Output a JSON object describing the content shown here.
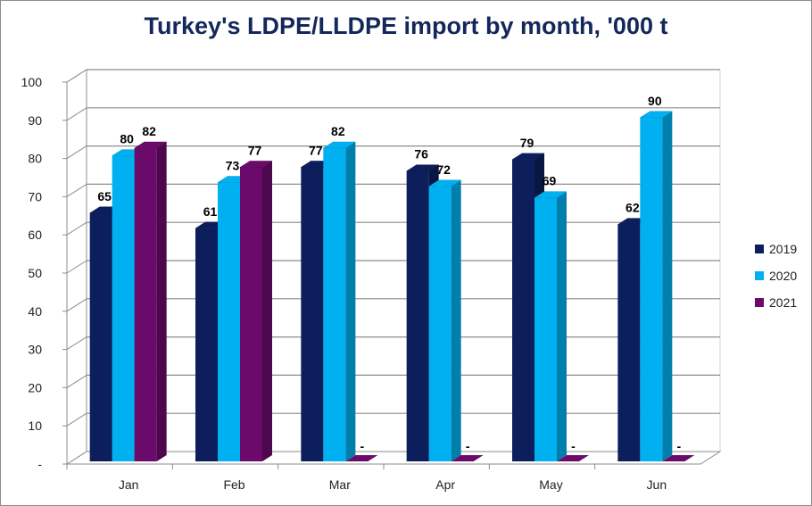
{
  "chart_data": {
    "type": "bar",
    "title": "Turkey's LDPE/LLDPE import by month, '000 t",
    "xlabel": "",
    "ylabel": "",
    "categories": [
      "Jan",
      "Feb",
      "Mar",
      "Apr",
      "May",
      "Jun"
    ],
    "ylim": [
      0,
      100
    ],
    "yticks": [
      0,
      10,
      20,
      30,
      40,
      50,
      60,
      70,
      80,
      90,
      100
    ],
    "ytick_labels": [
      "-",
      "10",
      "20",
      "30",
      "40",
      "50",
      "60",
      "70",
      "80",
      "90",
      "100"
    ],
    "grid": true,
    "legend_position": "right",
    "empty_label": "-",
    "series": [
      {
        "name": "2019",
        "color": "#0c1f5c",
        "values": [
          65,
          61,
          77,
          76,
          79,
          62
        ]
      },
      {
        "name": "2020",
        "color": "#00b0f0",
        "values": [
          80,
          73,
          82,
          72,
          69,
          90
        ]
      },
      {
        "name": "2021",
        "color": "#6b0a6b",
        "values": [
          82,
          77,
          null,
          null,
          null,
          null
        ]
      }
    ]
  }
}
